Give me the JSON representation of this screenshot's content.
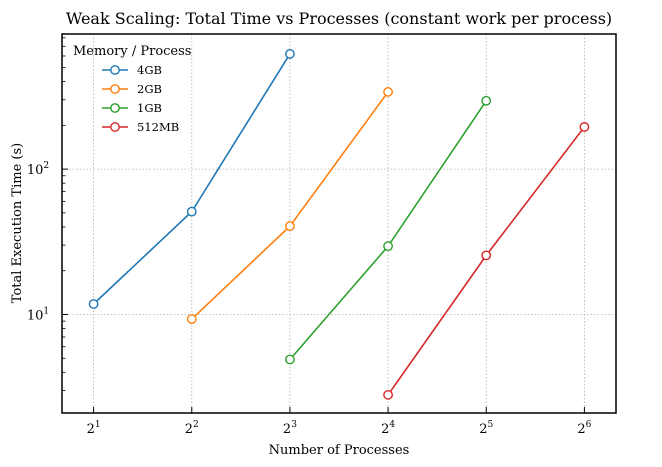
{
  "chart_data": {
    "type": "line",
    "title": "Weak Scaling: Total Time vs Processes (constant work per process)",
    "xlabel": "Number of Processes",
    "ylabel": "Total Execution Time (s)",
    "x_scale": "log2",
    "y_scale": "log10",
    "xlim": [
      1.6,
      80
    ],
    "ylim": [
      2.1,
      850
    ],
    "x_ticks": [
      {
        "base": "2",
        "exp": "1",
        "value": 2
      },
      {
        "base": "2",
        "exp": "2",
        "value": 4
      },
      {
        "base": "2",
        "exp": "3",
        "value": 8
      },
      {
        "base": "2",
        "exp": "4",
        "value": 16
      },
      {
        "base": "2",
        "exp": "5",
        "value": 32
      },
      {
        "base": "2",
        "exp": "6",
        "value": 64
      }
    ],
    "y_ticks": [
      {
        "base": "10",
        "exp": "1",
        "value": 10
      },
      {
        "base": "10",
        "exp": "2",
        "value": 100
      }
    ],
    "grid": true,
    "legend": {
      "title": "Memory / Process",
      "position": "top-left"
    },
    "series": [
      {
        "name": "4GB",
        "color": "#1f77b4",
        "x": [
          2,
          4,
          8
        ],
        "y": [
          11.8,
          51,
          620
        ]
      },
      {
        "name": "2GB",
        "color": "#ff7f0e",
        "x": [
          4,
          8,
          16
        ],
        "y": [
          9.3,
          40.5,
          340
        ]
      },
      {
        "name": "1GB",
        "color": "#2ca02c",
        "x": [
          8,
          16,
          32
        ],
        "y": [
          4.9,
          29.5,
          295
        ]
      },
      {
        "name": "512MB",
        "color": "#d62728",
        "x": [
          16,
          32,
          64
        ],
        "y": [
          2.8,
          25.5,
          195
        ]
      }
    ]
  }
}
